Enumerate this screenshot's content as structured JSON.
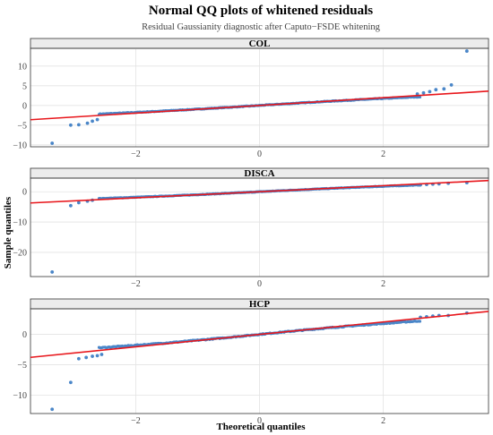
{
  "chart_data": {
    "type": "scatter",
    "title": "Normal QQ plots of whitened residuals",
    "subtitle": "Residual Gaussianity diagnostic after Caputo−FSDE whitening",
    "xlabel": "Theoretical quantiles",
    "ylabel": "Sample quantiles",
    "xlim": [
      -3.7,
      3.7
    ],
    "x_ticks": [
      -2,
      0,
      2
    ],
    "x_tick_labels": [
      "−2",
      "0",
      "2"
    ],
    "grid": true,
    "point_color": "#4a86c8",
    "line_color": "#e8161b",
    "panels": [
      {
        "name": "COL",
        "ylim": [
          -10.5,
          14.5
        ],
        "y_ticks": [
          10,
          5,
          0,
          -5,
          -10
        ],
        "y_tick_labels": [
          "10",
          "5",
          "0",
          "−5",
          "−10"
        ],
        "line": {
          "intercept": 0.0,
          "slope": 0.98
        },
        "outliers": [
          {
            "x": -3.35,
            "y": -9.6
          },
          {
            "x": -3.05,
            "y": -5.0
          },
          {
            "x": -2.92,
            "y": -4.9
          },
          {
            "x": -2.78,
            "y": -4.5
          },
          {
            "x": -2.7,
            "y": -4.0
          },
          {
            "x": -2.62,
            "y": -3.6
          },
          {
            "x": 2.55,
            "y": 2.9
          },
          {
            "x": 2.65,
            "y": 3.2
          },
          {
            "x": 2.75,
            "y": 3.5
          },
          {
            "x": 2.85,
            "y": 4.0
          },
          {
            "x": 2.98,
            "y": 4.2
          },
          {
            "x": 3.1,
            "y": 5.2
          },
          {
            "x": 3.35,
            "y": 13.8
          }
        ]
      },
      {
        "name": "DISCA",
        "ylim": [
          -28,
          4.5
        ],
        "y_ticks": [
          0,
          -10,
          -20
        ],
        "y_tick_labels": [
          "0",
          "−10",
          "−20"
        ],
        "line": {
          "intercept": 0.0,
          "slope": 1.0
        },
        "outliers": [
          {
            "x": -3.35,
            "y": -26.5
          },
          {
            "x": -3.05,
            "y": -4.6
          },
          {
            "x": -2.92,
            "y": -3.6
          },
          {
            "x": -2.78,
            "y": -3.1
          },
          {
            "x": -2.7,
            "y": -2.8
          },
          {
            "x": 2.6,
            "y": 2.3
          },
          {
            "x": 2.7,
            "y": 2.4
          },
          {
            "x": 2.8,
            "y": 2.5
          },
          {
            "x": 2.9,
            "y": 2.6
          },
          {
            "x": 3.05,
            "y": 2.8
          },
          {
            "x": 3.35,
            "y": 3.0
          }
        ]
      },
      {
        "name": "HCP",
        "ylim": [
          -13,
          4.2
        ],
        "y_ticks": [
          0,
          -5,
          -10
        ],
        "y_tick_labels": [
          "0",
          "−5",
          "−10"
        ],
        "line": {
          "intercept": 0.0,
          "slope": 1.02
        },
        "outliers": [
          {
            "x": -3.35,
            "y": -12.3
          },
          {
            "x": -3.05,
            "y": -7.9
          },
          {
            "x": -2.92,
            "y": -4.0
          },
          {
            "x": -2.8,
            "y": -3.8
          },
          {
            "x": -2.7,
            "y": -3.6
          },
          {
            "x": -2.62,
            "y": -3.5
          },
          {
            "x": -2.55,
            "y": -3.3
          },
          {
            "x": 2.6,
            "y": 2.8
          },
          {
            "x": 2.7,
            "y": 2.9
          },
          {
            "x": 2.8,
            "y": 3.0
          },
          {
            "x": 2.9,
            "y": 3.1
          },
          {
            "x": 3.05,
            "y": 3.1
          },
          {
            "x": 3.35,
            "y": 3.5
          }
        ]
      }
    ]
  }
}
